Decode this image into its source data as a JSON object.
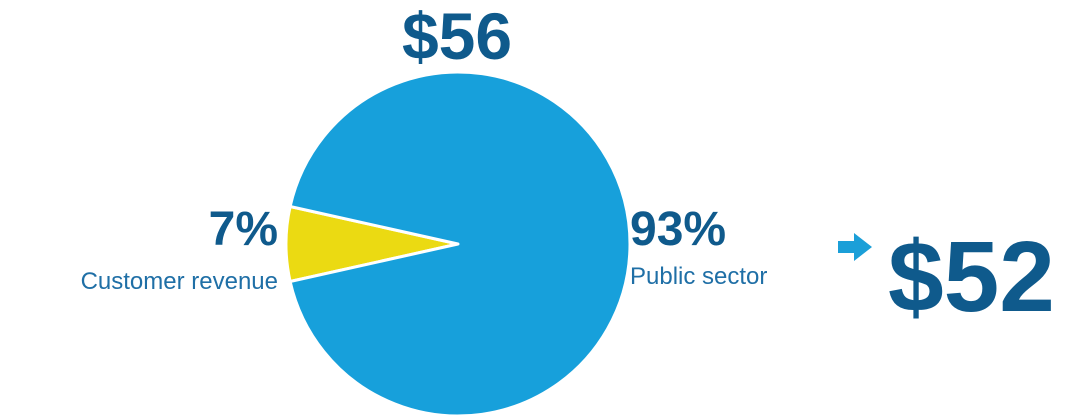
{
  "chart_data": {
    "type": "pie",
    "title": "$56",
    "slices": [
      {
        "label": "Public sector",
        "value": 93,
        "pct_label": "93%",
        "color": "#17A0DB"
      },
      {
        "label": "Customer revenue",
        "value": 7,
        "pct_label": "7%",
        "color": "#EBDA12"
      }
    ]
  },
  "callout": {
    "value": "$52",
    "arrow_color": "#1B9FD8",
    "icon": "right-arrow-icon"
  }
}
